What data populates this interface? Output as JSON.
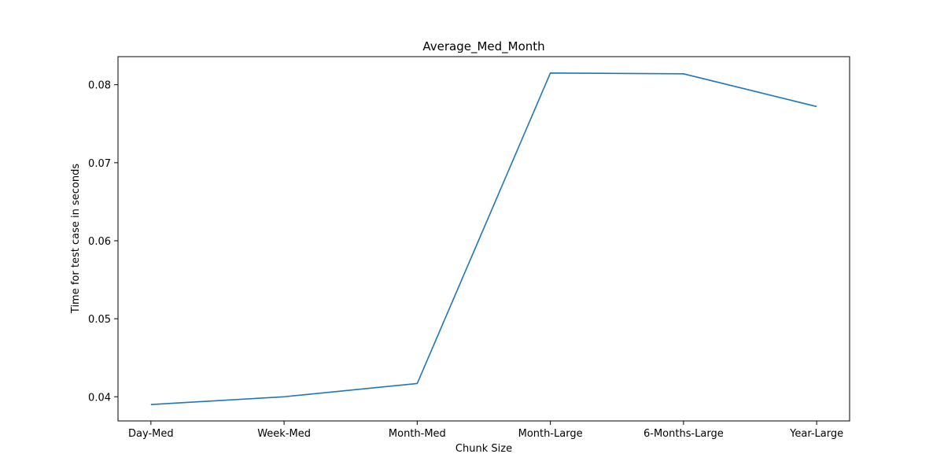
{
  "chart_data": {
    "type": "line",
    "title": "Average_Med_Month",
    "xlabel": "Chunk Size",
    "ylabel": "Time for test case in seconds",
    "categories": [
      "Day-Med",
      "Week-Med",
      "Month-Med",
      "Month-Large",
      "6-Months-Large",
      "Year-Large"
    ],
    "series": [
      {
        "values": [
          0.039,
          0.04,
          0.0417,
          0.0815,
          0.0814,
          0.0772
        ],
        "color": "#1f77b4"
      }
    ],
    "yticks": [
      0.04,
      0.05,
      0.06,
      0.07,
      0.08
    ],
    "ytick_labels": [
      "0.04",
      "0.05",
      "0.06",
      "0.07",
      "0.08"
    ],
    "ylim": [
      0.0369,
      0.0836
    ],
    "grid": false,
    "legend": "none"
  }
}
